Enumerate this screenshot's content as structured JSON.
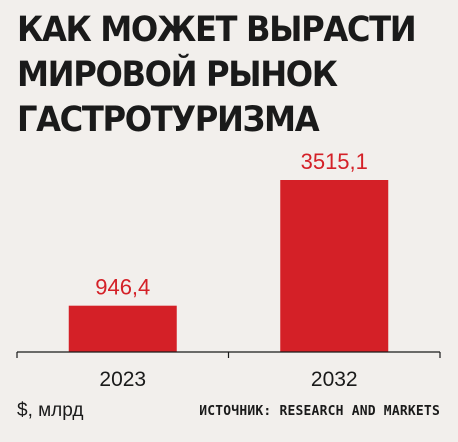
{
  "header": {
    "title_lines": [
      "КАК МОЖЕТ ВЫРАСТИ",
      "МИРОВОЙ РЫНОК",
      "ГАСТРОТУРИЗМА"
    ]
  },
  "footer": {
    "unit": "$, млрд",
    "source": "ИСТОЧНИК: RESEARCH AND MARKETS"
  },
  "colors": {
    "bar": "#d42027",
    "label": "#d42027",
    "axis": "#1a1a1a",
    "background": "#f2efec"
  },
  "chart_data": {
    "type": "bar",
    "categories": [
      "2023",
      "2032"
    ],
    "values": [
      946.4,
      3515.1
    ],
    "value_labels": [
      "946,4",
      "3515,1"
    ],
    "ylim": [
      0,
      3515.1
    ],
    "grid": false,
    "legend": "none"
  }
}
